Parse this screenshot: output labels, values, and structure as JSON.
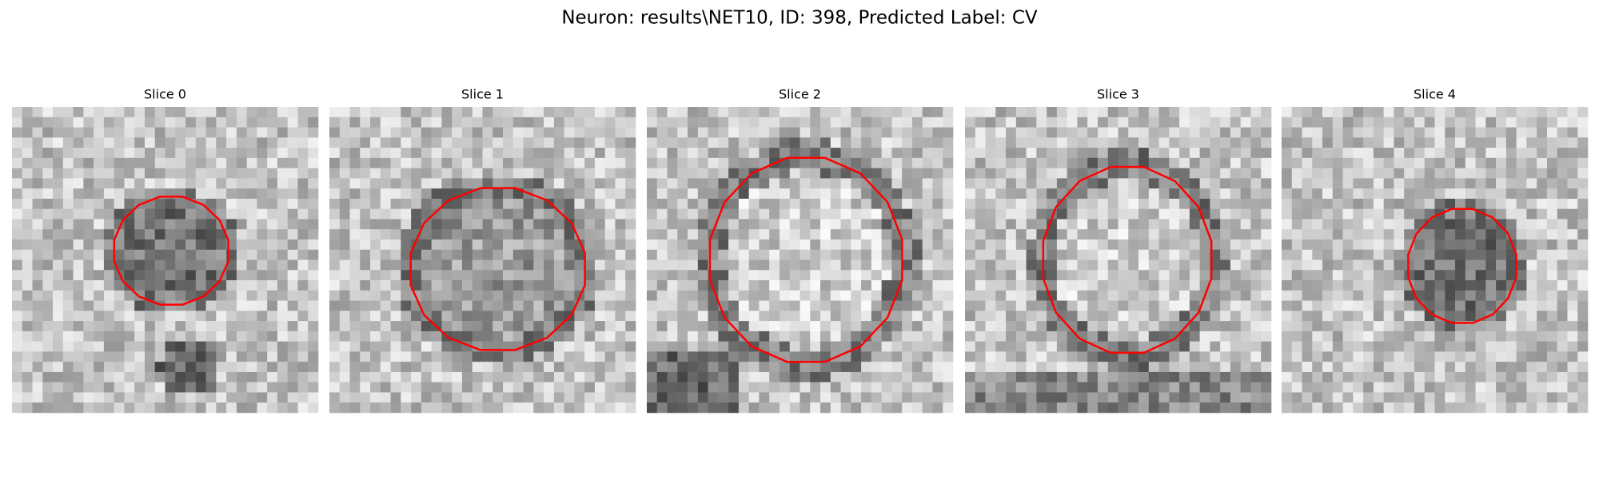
{
  "header": {
    "title": "Neuron: results\\NET10, ID: 398, Predicted Label: CV"
  },
  "panels": [
    {
      "title": "Slice 0"
    },
    {
      "title": "Slice 1"
    },
    {
      "title": "Slice 2"
    },
    {
      "title": "Slice 3"
    },
    {
      "title": "Slice 4"
    }
  ]
}
